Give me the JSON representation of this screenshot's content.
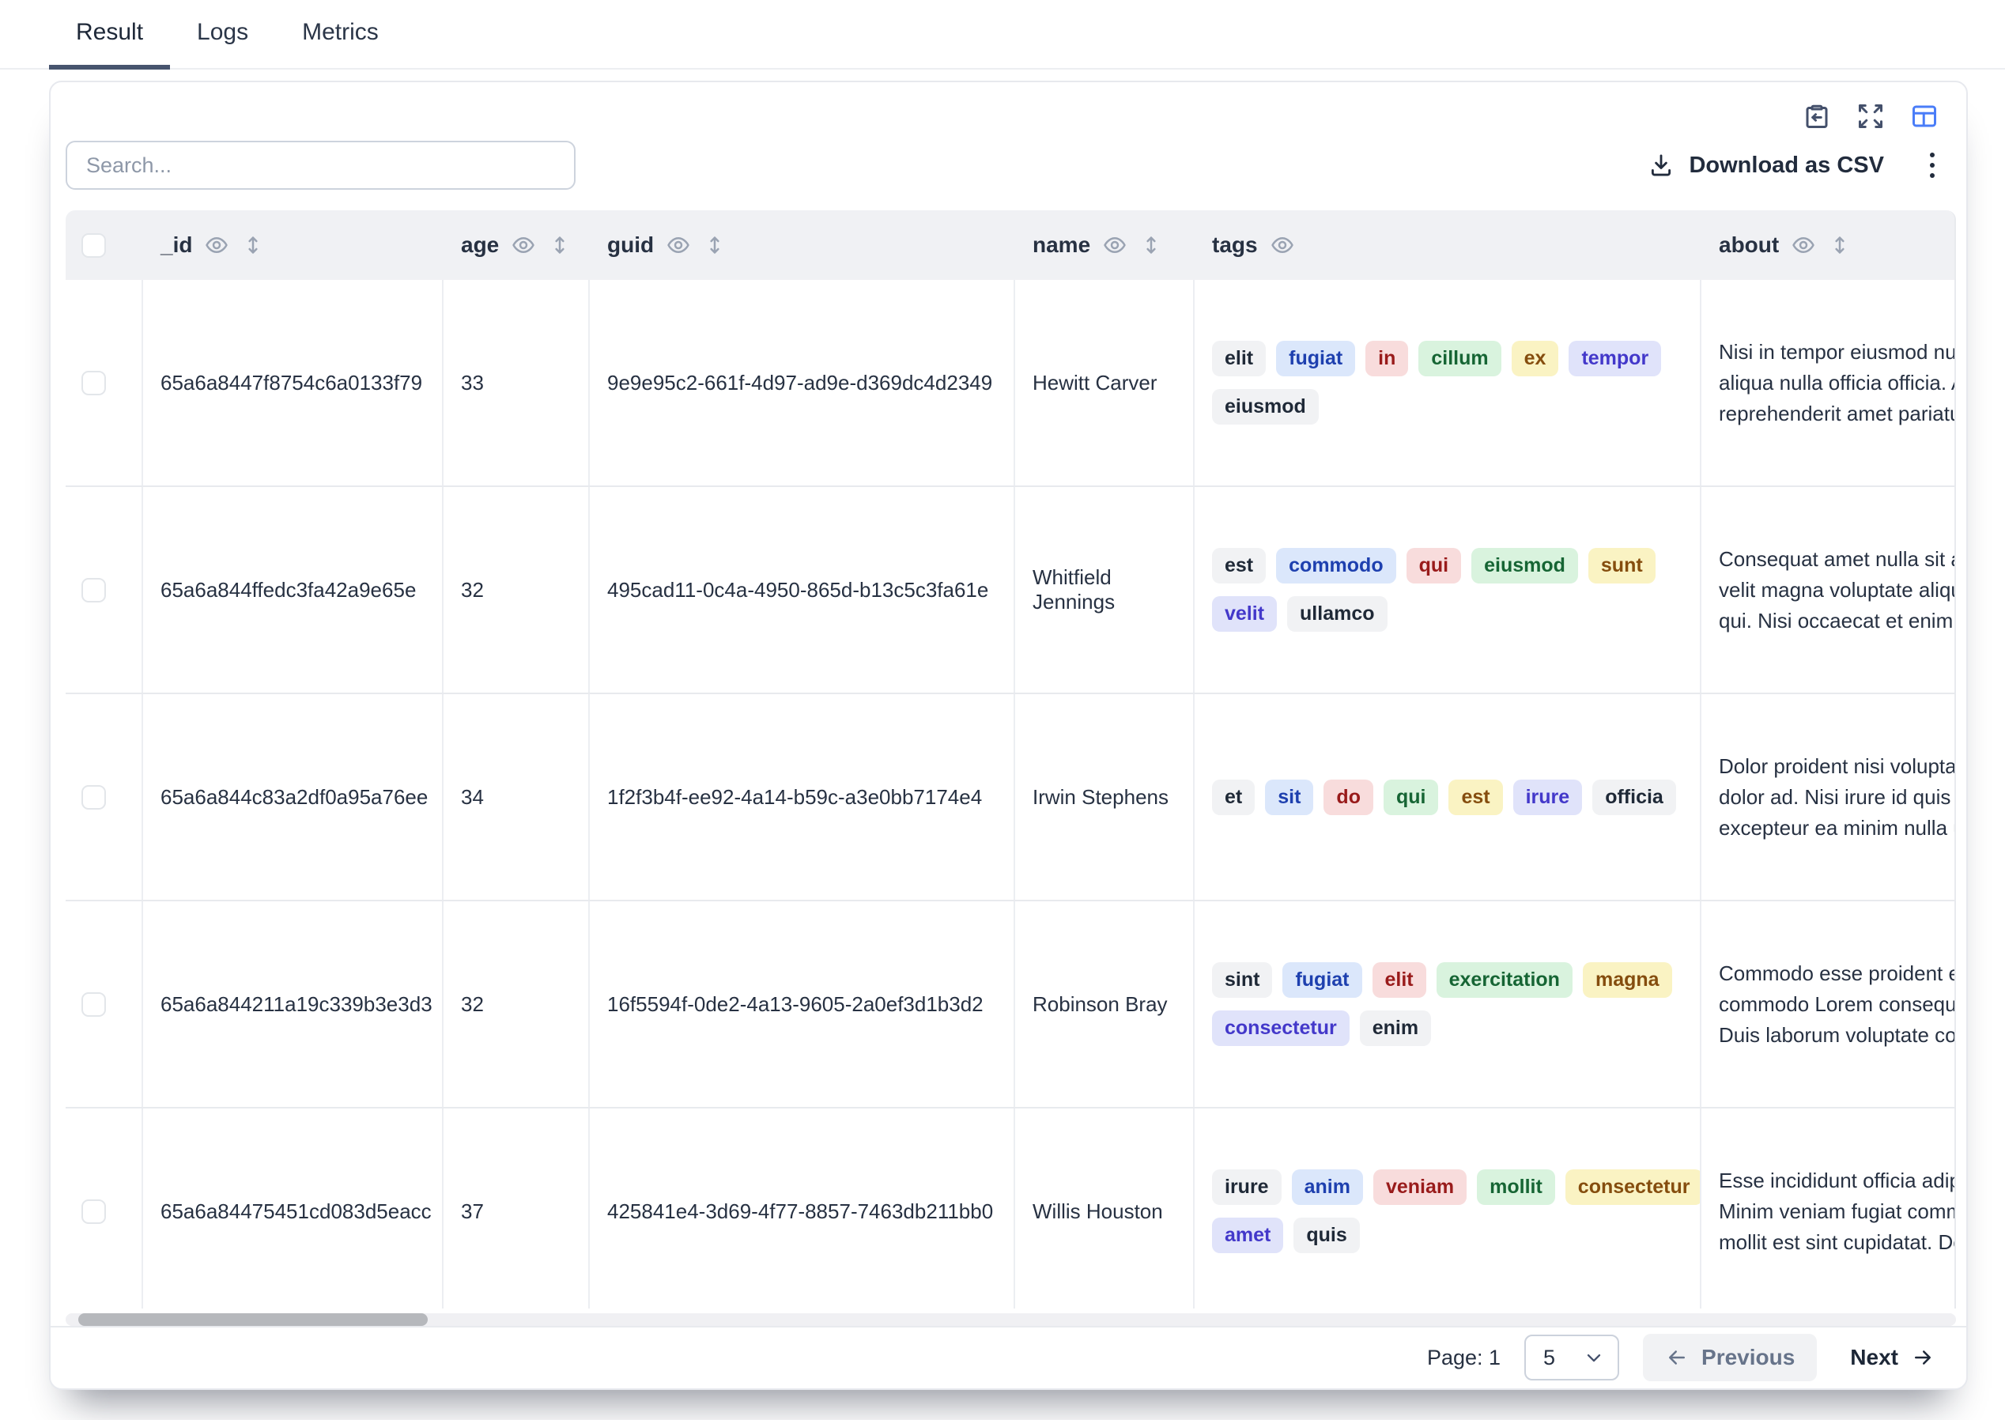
{
  "tabs": [
    {
      "label": "Result",
      "active": true
    },
    {
      "label": "Logs",
      "active": false
    },
    {
      "label": "Metrics",
      "active": false
    }
  ],
  "header_actions": {
    "icons": [
      "clipboard-paste-icon",
      "expand-icon",
      "table-columns-icon"
    ],
    "active_icon_color": "#4a7df8",
    "icon_color": "#44506b"
  },
  "toolbar": {
    "search_placeholder": "Search...",
    "download_label": "Download as CSV",
    "menu_icon": "vertical-dots-icon"
  },
  "table": {
    "columns": [
      {
        "key": "_id",
        "label": "_id",
        "eye": true,
        "sort": true
      },
      {
        "key": "age",
        "label": "age",
        "eye": true,
        "sort": true
      },
      {
        "key": "guid",
        "label": "guid",
        "eye": true,
        "sort": true
      },
      {
        "key": "name",
        "label": "name",
        "eye": true,
        "sort": true
      },
      {
        "key": "tags",
        "label": "tags",
        "eye": true,
        "sort": false
      },
      {
        "key": "about",
        "label": "about",
        "eye": true,
        "sort": true
      }
    ],
    "rows": [
      {
        "_id": "65a6a8447f8754c6a0133f79",
        "age": "33",
        "guid": "9e9e95c2-661f-4d97-ad9e-d369dc4d2349",
        "name": "Hewitt Carver",
        "tag_lines": [
          [
            {
              "label": "elit",
              "color": "gray"
            },
            {
              "label": "fugiat",
              "color": "blue"
            },
            {
              "label": "in",
              "color": "red"
            },
            {
              "label": "cillum",
              "color": "green"
            },
            {
              "label": "ex",
              "color": "yellow"
            },
            {
              "label": "tempor",
              "color": "indigo"
            }
          ],
          [
            {
              "label": "eiusmod",
              "color": "gray"
            }
          ]
        ],
        "about_lines": [
          "Nisi in tempor eiusmod nulla",
          "aliqua nulla officia officia. Ad",
          "reprehenderit amet pariatur"
        ]
      },
      {
        "_id": "65a6a844ffedc3fa42a9e65e",
        "age": "32",
        "guid": "495cad11-0c4a-4950-865d-b13c5c3fa61e",
        "name": "Whitfield Jennings",
        "tag_lines": [
          [
            {
              "label": "est",
              "color": "gray"
            },
            {
              "label": "commodo",
              "color": "blue"
            },
            {
              "label": "qui",
              "color": "red"
            },
            {
              "label": "eiusmod",
              "color": "green"
            },
            {
              "label": "sunt",
              "color": "yellow"
            }
          ],
          [
            {
              "label": "velit",
              "color": "indigo"
            },
            {
              "label": "ullamco",
              "color": "gray"
            }
          ]
        ],
        "about_lines": [
          "Consequat amet nulla sit aute",
          "velit magna voluptate aliqua",
          "qui. Nisi occaecat et enim a"
        ]
      },
      {
        "_id": "65a6a844c83a2df0a95a76ee",
        "age": "34",
        "guid": "1f2f3b4f-ee92-4a14-b59c-a3e0bb7174e4",
        "name": "Irwin Stephens",
        "tag_lines": [
          [
            {
              "label": "et",
              "color": "gray"
            },
            {
              "label": "sit",
              "color": "blue"
            },
            {
              "label": "do",
              "color": "red"
            },
            {
              "label": "qui",
              "color": "green"
            },
            {
              "label": "est",
              "color": "yellow"
            },
            {
              "label": "irure",
              "color": "indigo"
            },
            {
              "label": "officia",
              "color": "gray"
            }
          ]
        ],
        "about_lines": [
          "Dolor proident nisi voluptate",
          "dolor ad. Nisi irure id quis ex",
          "excepteur ea minim nulla ut"
        ]
      },
      {
        "_id": "65a6a844211a19c339b3e3d3",
        "age": "32",
        "guid": "16f5594f-0de2-4a13-9605-2a0ef3d1b3d2",
        "name": "Robinson Bray",
        "tag_lines": [
          [
            {
              "label": "sint",
              "color": "gray"
            },
            {
              "label": "fugiat",
              "color": "blue"
            },
            {
              "label": "elit",
              "color": "red"
            },
            {
              "label": "exercitation",
              "color": "green"
            },
            {
              "label": "magna",
              "color": "yellow"
            }
          ],
          [
            {
              "label": "consectetur",
              "color": "indigo"
            },
            {
              "label": "enim",
              "color": "gray"
            }
          ]
        ],
        "about_lines": [
          "Commodo esse proident ex",
          "commodo Lorem consequat",
          "Duis laborum voluptate con"
        ]
      },
      {
        "_id": "65a6a84475451cd083d5eacc",
        "age": "37",
        "guid": "425841e4-3d69-4f77-8857-7463db211bb0",
        "name": "Willis Houston",
        "tag_lines": [
          [
            {
              "label": "irure",
              "color": "gray"
            },
            {
              "label": "anim",
              "color": "blue"
            },
            {
              "label": "veniam",
              "color": "red"
            },
            {
              "label": "mollit",
              "color": "green"
            },
            {
              "label": "consectetur",
              "color": "yellow"
            }
          ],
          [
            {
              "label": "amet",
              "color": "indigo"
            },
            {
              "label": "quis",
              "color": "gray"
            }
          ]
        ],
        "about_lines": [
          "Esse incididunt officia adipi",
          "Minim veniam fugiat commo",
          "mollit est sint cupidatat. De"
        ]
      }
    ]
  },
  "pagination": {
    "page_label": "Page: 1",
    "page_size": "5",
    "previous_label": "Previous",
    "next_label": "Next"
  },
  "icons": {
    "eye": "eye-icon",
    "sort": "up-down-sort-icon",
    "download": "download-icon",
    "chevron": "chevron-down-icon",
    "arrow_left": "arrow-left-icon",
    "arrow_right": "arrow-right-icon"
  },
  "tag_palette": {
    "gray": {
      "bg": "#f1f2f4",
      "text": "#1f2937"
    },
    "blue": {
      "bg": "#dbe7fb",
      "text": "#1e40af"
    },
    "red": {
      "bg": "#f8dcdc",
      "text": "#991b1b"
    },
    "green": {
      "bg": "#d9f3de",
      "text": "#166534"
    },
    "yellow": {
      "bg": "#faf3c3",
      "text": "#854d0e"
    },
    "indigo": {
      "bg": "#e0e3fa",
      "text": "#4338ca"
    }
  }
}
